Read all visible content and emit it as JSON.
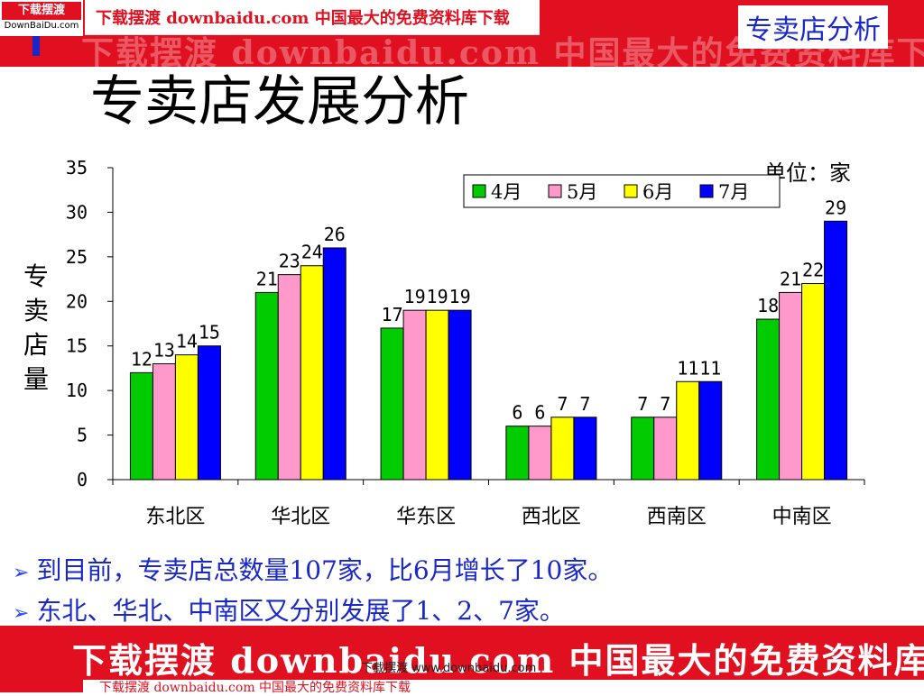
{
  "header": {
    "logo_text": "下载摆渡",
    "logo_sub": "DownBaiDu.com",
    "strip_text": "下载摆渡 downbaidu.com 中国最大的免费资料库下载",
    "watermark": "下载摆渡 downbaidu.com 中国最大的免费资料库下载",
    "corner_title": "专卖店分析",
    "accent_red": "#e01020",
    "accent_blue": "#1a28c8"
  },
  "page_title": "专卖店发展分析",
  "chart_data": {
    "type": "bar",
    "title": "",
    "xlabel": "",
    "ylabel": "专卖店量",
    "unit_label": "单位：家",
    "ylim": [
      0,
      35
    ],
    "yticks": [
      "0",
      "5",
      "10",
      "15",
      "20",
      "25",
      "30",
      "35"
    ],
    "categories": [
      "东北区",
      "华北区",
      "华东区",
      "西北区",
      "西南区",
      "中南区"
    ],
    "series": [
      {
        "name": "4月",
        "color": "#00cc00",
        "values": [
          12,
          21,
          17,
          6,
          7,
          18
        ]
      },
      {
        "name": "5月",
        "color": "#ff99cc",
        "values": [
          13,
          23,
          19,
          6,
          7,
          21
        ]
      },
      {
        "name": "6月",
        "color": "#ffff00",
        "values": [
          14,
          24,
          19,
          7,
          11,
          22
        ]
      },
      {
        "name": "7月",
        "color": "#0000ff",
        "values": [
          15,
          26,
          19,
          7,
          11,
          29
        ]
      }
    ],
    "legend_position": "top-right",
    "grid": false
  },
  "bullets": [
    "到目前，专卖店总数量107家，比6月增长了10家。",
    "东北、华北、中南区又分别发展了1、2、7家。"
  ],
  "footer": {
    "watermark": "下载摆渡 downbaidu.com 中国最大的免费资料库下载",
    "small_text": "下载摆渡 www.downbaidu.com",
    "strip_text": "下载摆渡 downbaidu.com 中国最大的免费资料库下载"
  }
}
